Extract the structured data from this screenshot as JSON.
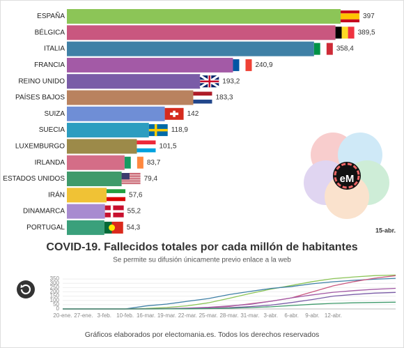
{
  "chart_data": [
    {
      "type": "barh",
      "title": "COVID-19. Fallecidos totales por cada millón de habitantes",
      "subtitle": "Se permite su difusión únicamente previo enlace a la web",
      "date": "15-abr.",
      "categories": [
        "ESPAÑA",
        "BÉLGICA",
        "ITALIA",
        "FRANCIA",
        "REINO UNIDO",
        "PAÍSES BAJOS",
        "SUIZA",
        "SUECIA",
        "LUXEMBURGO",
        "IRLANDA",
        "ESTADOS UNIDOS",
        "IRÁN",
        "DINAMARCA",
        "PORTUGAL"
      ],
      "values": [
        397,
        389.5,
        358.4,
        240.9,
        193.2,
        183.3,
        142,
        118.9,
        101.5,
        83.7,
        79.4,
        57.6,
        55.2,
        54.3
      ],
      "value_labels": [
        "397",
        "389,5",
        "358,4",
        "240,9",
        "193,2",
        "183,3",
        "142",
        "118,9",
        "101,5",
        "83,7",
        "79,4",
        "57,6",
        "55,2",
        "54,3"
      ],
      "colors": [
        "#8cc557",
        "#c9577f",
        "#3f80a6",
        "#a35aa6",
        "#7a5ca7",
        "#b9825f",
        "#6f8ed6",
        "#2c9dc0",
        "#9c8a49",
        "#d46d87",
        "#3f9a6b",
        "#f0c235",
        "#a88bd0",
        "#3aa07b"
      ],
      "xlim": [
        0,
        400
      ]
    },
    {
      "type": "line",
      "categories": [
        "20-ene.",
        "27-ene.",
        "3-feb.",
        "10-feb.",
        "16-mar.",
        "19-mar.",
        "22-mar.",
        "25-mar.",
        "28-mar.",
        "31-mar.",
        "3-abr.",
        "6-abr.",
        "9-abr.",
        "12-abr.",
        null,
        null,
        null
      ],
      "series": [
        {
          "name": "ESPAÑA",
          "color": "#8cc557",
          "values": [
            0,
            0,
            0,
            0,
            6,
            17,
            37,
            72,
            125,
            180,
            232,
            275,
            320,
            355,
            375,
            390,
            397
          ]
        },
        {
          "name": "ITALIA",
          "color": "#3f80a6",
          "values": [
            0,
            0,
            0,
            0,
            35,
            57,
            90,
            122,
            168,
            205,
            240,
            263,
            295,
            318,
            335,
            348,
            358.4
          ]
        },
        {
          "name": "BÉLGICA",
          "color": "#c9577f",
          "values": [
            0,
            0,
            0,
            0,
            0,
            1,
            6,
            16,
            30,
            60,
            90,
            130,
            200,
            270,
            320,
            360,
            389.5
          ]
        },
        {
          "name": "FRANCIA",
          "color": "#a35aa6",
          "values": [
            0,
            0,
            0,
            0,
            2,
            5,
            10,
            20,
            35,
            55,
            90,
            130,
            165,
            195,
            215,
            230,
            240.9
          ]
        },
        {
          "name": "REINO UNIDO",
          "color": "#7a5ca7",
          "values": [
            0,
            0,
            0,
            0,
            1,
            2,
            4,
            7,
            15,
            28,
            45,
            75,
            110,
            150,
            170,
            185,
            193.2
          ]
        },
        {
          "name": "ESTADOS UNIDOS",
          "color": "#3f9a6b",
          "values": [
            0,
            0,
            0,
            0,
            0,
            1,
            2,
            4,
            8,
            16,
            25,
            40,
            55,
            65,
            72,
            76,
            79.4
          ]
        }
      ],
      "ylim": [
        0,
        400
      ],
      "yticks": [
        0,
        50,
        100,
        150,
        200,
        250,
        300,
        350
      ]
    },
    {
      "type": "text",
      "footer": "Gráficos elaborados por electomania.es. Todos los derechos reservados",
      "logo": "eM"
    }
  ]
}
